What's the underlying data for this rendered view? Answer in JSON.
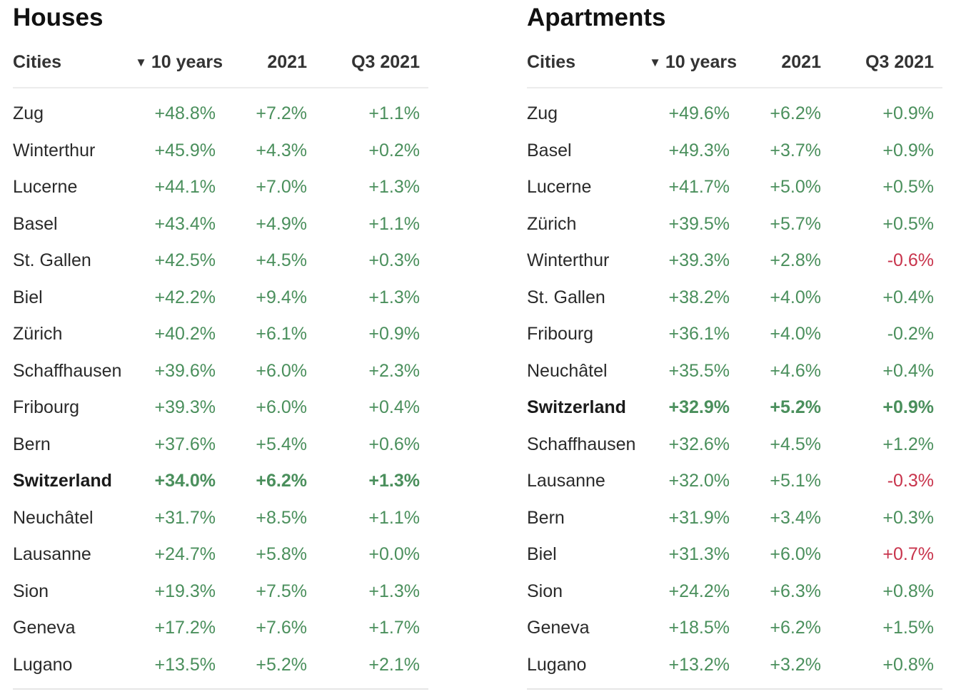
{
  "houses": {
    "title": "Houses",
    "columns": {
      "city": "Cities",
      "sort_indicator": "▼",
      "ten_years": "10 years",
      "y2021": "2021",
      "q3_2021": "Q3 2021"
    },
    "rows": [
      {
        "city": "Zug",
        "ten_years": "+48.8%",
        "y2021": "+7.2%",
        "q3_2021": "+1.1%",
        "q3_color": "#4a8f5c"
      },
      {
        "city": "Winterthur",
        "ten_years": "+45.9%",
        "y2021": "+4.3%",
        "q3_2021": "+0.2%",
        "q3_color": "#4a8f5c"
      },
      {
        "city": "Lucerne",
        "ten_years": "+44.1%",
        "y2021": "+7.0%",
        "q3_2021": "+1.3%",
        "q3_color": "#4a8f5c"
      },
      {
        "city": "Basel",
        "ten_years": "+43.4%",
        "y2021": "+4.9%",
        "q3_2021": "+1.1%",
        "q3_color": "#4a8f5c"
      },
      {
        "city": "St. Gallen",
        "ten_years": "+42.5%",
        "y2021": "+4.5%",
        "q3_2021": "+0.3%",
        "q3_color": "#4a8f5c"
      },
      {
        "city": "Biel",
        "ten_years": "+42.2%",
        "y2021": "+9.4%",
        "q3_2021": "+1.3%",
        "q3_color": "#4a8f5c"
      },
      {
        "city": "Zürich",
        "ten_years": "+40.2%",
        "y2021": "+6.1%",
        "q3_2021": "+0.9%",
        "q3_color": "#4a8f5c"
      },
      {
        "city": "Schaffhausen",
        "ten_years": "+39.6%",
        "y2021": "+6.0%",
        "q3_2021": "+2.3%",
        "q3_color": "#4a8f5c"
      },
      {
        "city": "Fribourg",
        "ten_years": "+39.3%",
        "y2021": "+6.0%",
        "q3_2021": "+0.4%",
        "q3_color": "#4a8f5c"
      },
      {
        "city": "Bern",
        "ten_years": "+37.6%",
        "y2021": "+5.4%",
        "q3_2021": "+0.6%",
        "q3_color": "#4a8f5c"
      },
      {
        "city": "Switzerland",
        "ten_years": "+34.0%",
        "y2021": "+6.2%",
        "q3_2021": "+1.3%",
        "q3_color": "#4a8f5c",
        "highlight": true
      },
      {
        "city": "Neuchâtel",
        "ten_years": "+31.7%",
        "y2021": "+8.5%",
        "q3_2021": "+1.1%",
        "q3_color": "#4a8f5c"
      },
      {
        "city": "Lausanne",
        "ten_years": "+24.7%",
        "y2021": "+5.8%",
        "q3_2021": "+0.0%",
        "q3_color": "#4a8f5c"
      },
      {
        "city": "Sion",
        "ten_years": "+19.3%",
        "y2021": "+7.5%",
        "q3_2021": "+1.3%",
        "q3_color": "#4a8f5c"
      },
      {
        "city": "Geneva",
        "ten_years": "+17.2%",
        "y2021": "+7.6%",
        "q3_2021": "+1.7%",
        "q3_color": "#4a8f5c"
      },
      {
        "city": "Lugano",
        "ten_years": "+13.5%",
        "y2021": "+5.2%",
        "q3_2021": "+2.1%",
        "q3_color": "#4a8f5c"
      }
    ]
  },
  "apartments": {
    "title": "Apartments",
    "columns": {
      "city": "Cities",
      "sort_indicator": "▼",
      "ten_years": "10 years",
      "y2021": "2021",
      "q3_2021": "Q3 2021"
    },
    "rows": [
      {
        "city": "Zug",
        "ten_years": "+49.6%",
        "y2021": "+6.2%",
        "q3_2021": "+0.9%",
        "q3_color": "#4a8f5c"
      },
      {
        "city": "Basel",
        "ten_years": "+49.3%",
        "y2021": "+3.7%",
        "q3_2021": "+0.9%",
        "q3_color": "#4a8f5c"
      },
      {
        "city": "Lucerne",
        "ten_years": "+41.7%",
        "y2021": "+5.0%",
        "q3_2021": "+0.5%",
        "q3_color": "#4a8f5c"
      },
      {
        "city": "Zürich",
        "ten_years": "+39.5%",
        "y2021": "+5.7%",
        "q3_2021": "+0.5%",
        "q3_color": "#4a8f5c"
      },
      {
        "city": "Winterthur",
        "ten_years": "+39.3%",
        "y2021": "+2.8%",
        "q3_2021": "-0.6%",
        "q3_color": "#c8344c"
      },
      {
        "city": "St. Gallen",
        "ten_years": "+38.2%",
        "y2021": "+4.0%",
        "q3_2021": "+0.4%",
        "q3_color": "#4a8f5c"
      },
      {
        "city": "Fribourg",
        "ten_years": "+36.1%",
        "y2021": "+4.0%",
        "q3_2021": "-0.2%",
        "q3_color": "#4a8f5c"
      },
      {
        "city": "Neuchâtel",
        "ten_years": "+35.5%",
        "y2021": "+4.6%",
        "q3_2021": "+0.4%",
        "q3_color": "#4a8f5c"
      },
      {
        "city": "Switzerland",
        "ten_years": "+32.9%",
        "y2021": "+5.2%",
        "q3_2021": "+0.9%",
        "q3_color": "#4a8f5c",
        "highlight": true
      },
      {
        "city": "Schaffhausen",
        "ten_years": "+32.6%",
        "y2021": "+4.5%",
        "q3_2021": "+1.2%",
        "q3_color": "#4a8f5c"
      },
      {
        "city": "Lausanne",
        "ten_years": "+32.0%",
        "y2021": "+5.1%",
        "q3_2021": "-0.3%",
        "q3_color": "#c8344c"
      },
      {
        "city": "Bern",
        "ten_years": "+31.9%",
        "y2021": "+3.4%",
        "q3_2021": "+0.3%",
        "q3_color": "#4a8f5c"
      },
      {
        "city": "Biel",
        "ten_years": "+31.3%",
        "y2021": "+6.0%",
        "q3_2021": "+0.7%",
        "q3_color": "#c8344c"
      },
      {
        "city": "Sion",
        "ten_years": "+24.2%",
        "y2021": "+6.3%",
        "q3_2021": "+0.8%",
        "q3_color": "#4a8f5c"
      },
      {
        "city": "Geneva",
        "ten_years": "+18.5%",
        "y2021": "+6.2%",
        "q3_2021": "+1.5%",
        "q3_color": "#4a8f5c"
      },
      {
        "city": "Lugano",
        "ten_years": "+13.2%",
        "y2021": "+3.2%",
        "q3_2021": "+0.8%",
        "q3_color": "#4a8f5c"
      }
    ]
  }
}
